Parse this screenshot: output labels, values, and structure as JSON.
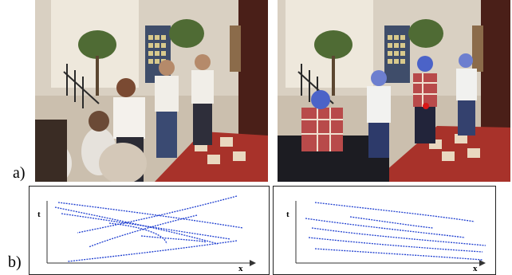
{
  "figure": {
    "row_a_label": "a)",
    "row_b_label": "b)"
  },
  "plots": {
    "left": {
      "ylabel": "t",
      "xlabel": "x"
    },
    "right": {
      "ylabel": "t",
      "xlabel": "x"
    }
  },
  "colors": {
    "trajectory": "#1f3fd0",
    "axis": "#333333",
    "floor_red": "#a8322a",
    "floor_cream": "#e9d8c0",
    "wall": "#d9d0c2"
  }
}
